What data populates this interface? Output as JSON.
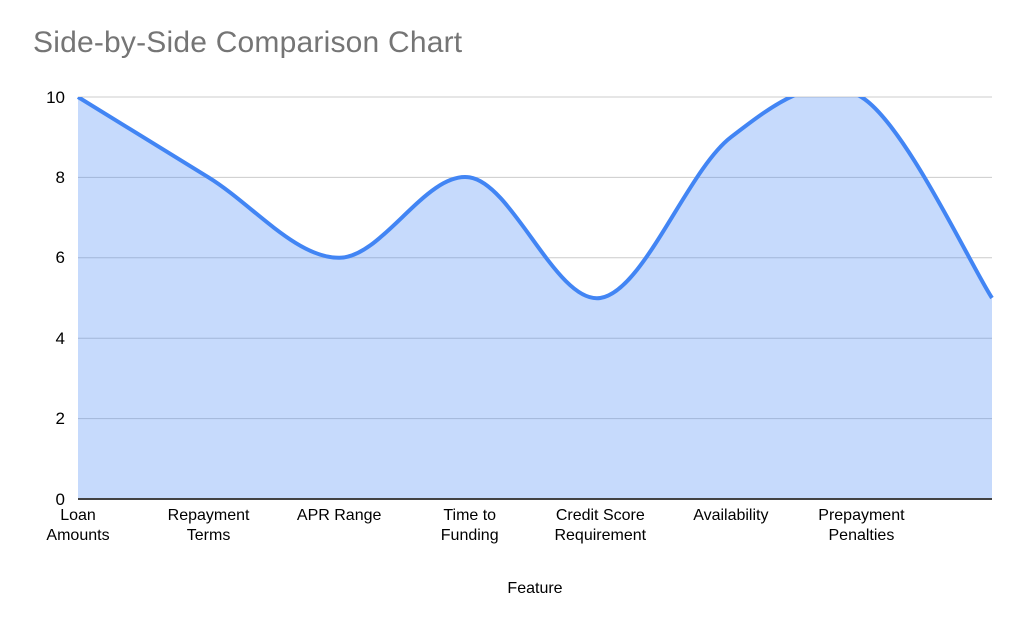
{
  "chart_data": {
    "type": "area",
    "title": "Side-by-Side Comparison Chart",
    "xlabel": "Feature",
    "ylabel": "",
    "categories": [
      "Loan\nAmounts",
      "Repayment\nTerms",
      "APR Range",
      "Time to\nFunding",
      "Credit Score\nRequirement",
      "Availability",
      "Prepayment\nPenalties",
      ""
    ],
    "values": [
      10,
      8,
      6,
      8,
      5,
      9,
      10,
      5
    ],
    "ylim": [
      0,
      10
    ],
    "yticks": [
      0,
      2,
      4,
      6,
      8,
      10
    ],
    "grid": true,
    "smooth": true,
    "legend_position": "none",
    "line_color": "#4285f4",
    "fill_opacity": 0.3,
    "grid_color": "#cccccc",
    "axis_color": "#424242",
    "title_color": "#757575",
    "label_color": "#000000"
  }
}
